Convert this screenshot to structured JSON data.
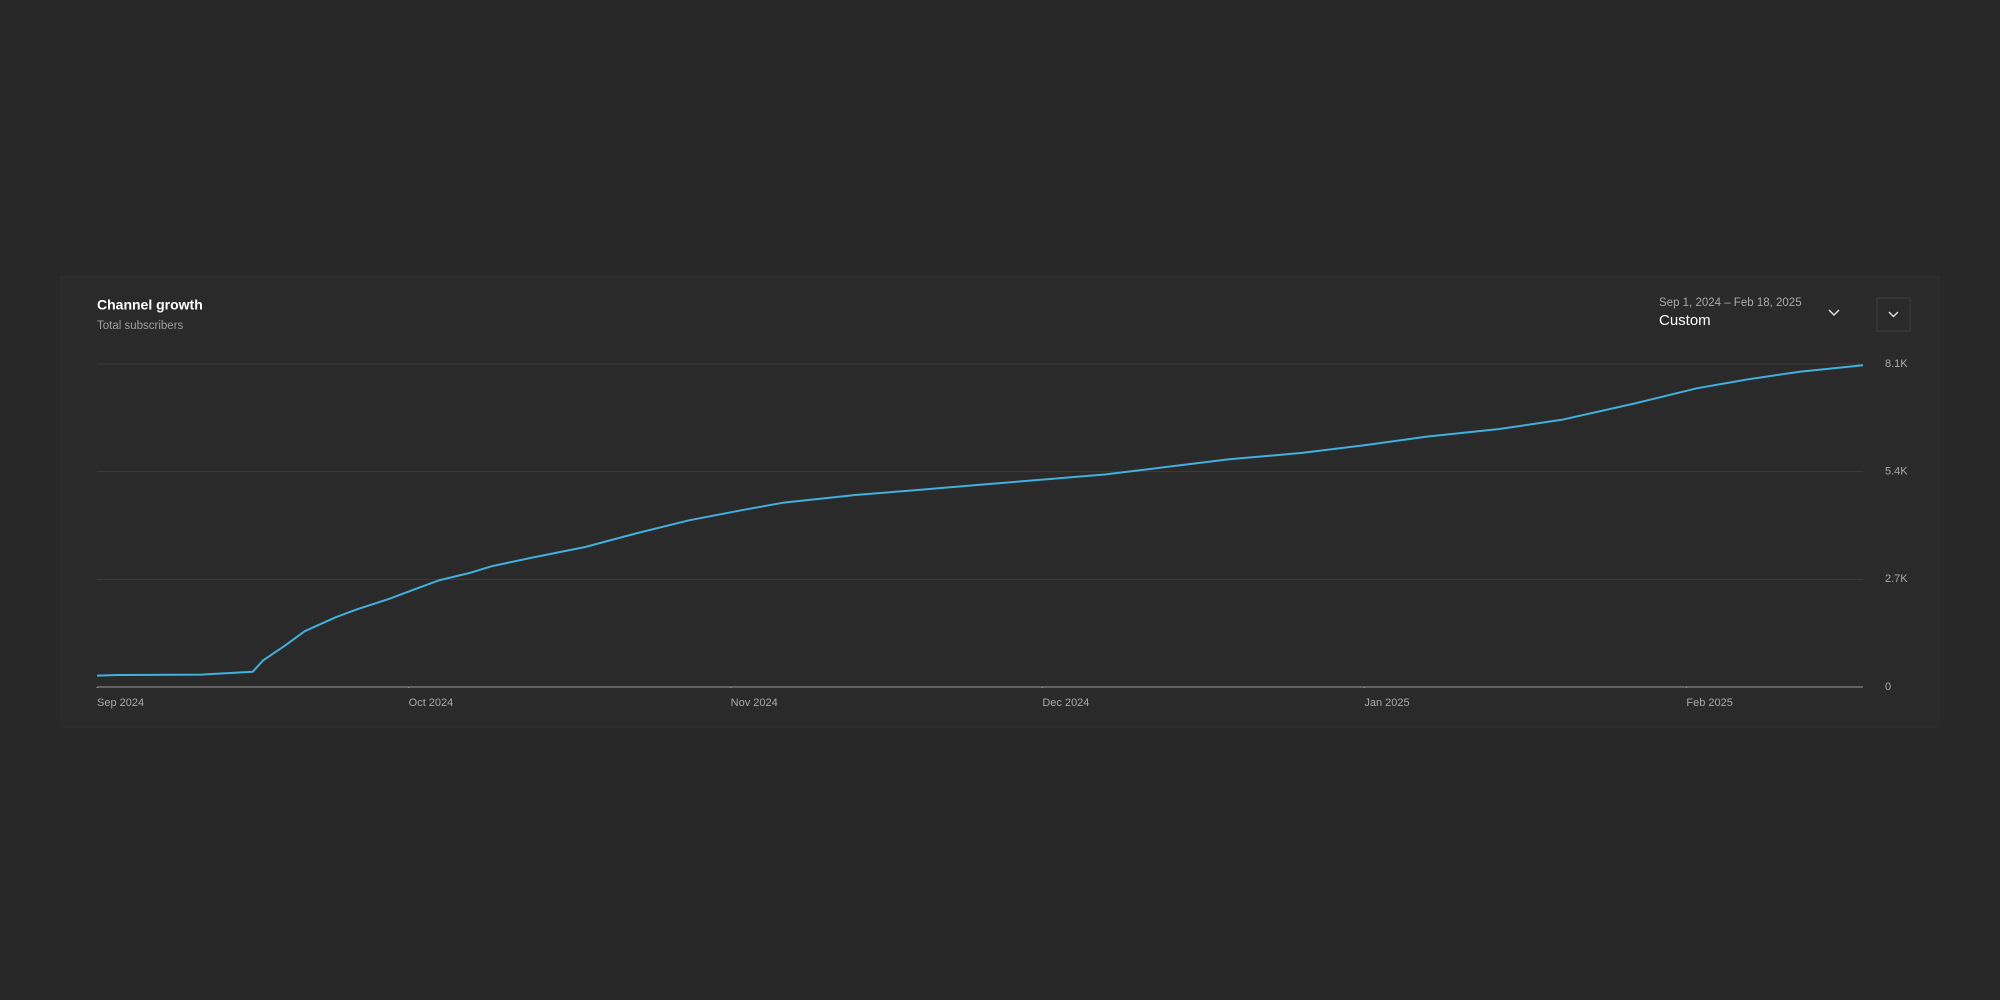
{
  "date_range": {
    "range": "Sep 1, 2024 – Feb 18, 2025",
    "preset": "Custom"
  },
  "chart_data": {
    "type": "line",
    "title": "Channel growth",
    "subtitle": "Total subscribers",
    "color": "#41b0dd",
    "grid": true,
    "x": [
      "2024-09-01",
      "2024-09-03",
      "2024-09-11",
      "2024-09-16",
      "2024-09-17",
      "2024-09-19",
      "2024-09-21",
      "2024-09-24",
      "2024-09-26",
      "2024-09-29",
      "2024-10-02",
      "2024-10-04",
      "2024-10-07",
      "2024-10-09",
      "2024-10-13",
      "2024-10-18",
      "2024-10-23",
      "2024-10-28",
      "2024-11-02",
      "2024-11-06",
      "2024-11-13",
      "2024-11-19",
      "2024-11-25",
      "2024-12-01",
      "2024-12-07",
      "2024-12-13",
      "2024-12-19",
      "2024-12-26",
      "2025-01-01",
      "2025-01-07",
      "2025-01-14",
      "2025-01-20",
      "2025-01-27",
      "2025-02-02",
      "2025-02-07",
      "2025-02-12",
      "2025-02-18"
    ],
    "values": [
      287,
      300,
      310,
      383,
      670,
      1020,
      1400,
      1750,
      1945,
      2200,
      2490,
      2680,
      2870,
      3030,
      3250,
      3510,
      3860,
      4180,
      4430,
      4620,
      4815,
      4940,
      5070,
      5200,
      5330,
      5520,
      5710,
      5870,
      6060,
      6280,
      6470,
      6700,
      7110,
      7490,
      7720,
      7910,
      8070
    ],
    "xlim": [
      "2024-09-01",
      "2025-02-18"
    ],
    "xticks": [
      {
        "value": "2024-09-01",
        "label": "Sep 2024"
      },
      {
        "value": "2024-10-01",
        "label": "Oct 2024"
      },
      {
        "value": "2024-11-01",
        "label": "Nov 2024"
      },
      {
        "value": "2024-12-01",
        "label": "Dec 2024"
      },
      {
        "value": "2025-01-01",
        "label": "Jan 2025"
      },
      {
        "value": "2025-02-01",
        "label": "Feb 2025"
      }
    ],
    "ylim": [
      0,
      8100
    ],
    "yticks": [
      0,
      {
        "value": 2700,
        "label": "2.7K"
      },
      {
        "value": 5400,
        "label": "5.4K"
      },
      {
        "value": 8100,
        "label": "8.1K"
      }
    ]
  }
}
